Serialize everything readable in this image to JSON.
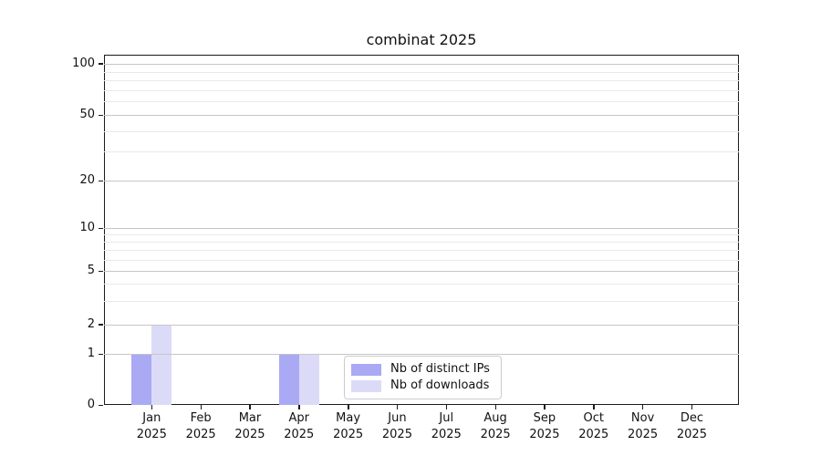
{
  "chart_data": {
    "type": "bar",
    "title": "combinat 2025",
    "categories": [
      {
        "month": "Jan",
        "year": "2025"
      },
      {
        "month": "Feb",
        "year": "2025"
      },
      {
        "month": "Mar",
        "year": "2025"
      },
      {
        "month": "Apr",
        "year": "2025"
      },
      {
        "month": "May",
        "year": "2025"
      },
      {
        "month": "Jun",
        "year": "2025"
      },
      {
        "month": "Jul",
        "year": "2025"
      },
      {
        "month": "Aug",
        "year": "2025"
      },
      {
        "month": "Sep",
        "year": "2025"
      },
      {
        "month": "Oct",
        "year": "2025"
      },
      {
        "month": "Nov",
        "year": "2025"
      },
      {
        "month": "Dec",
        "year": "2025"
      }
    ],
    "series": [
      {
        "name": "Nb of distinct IPs",
        "color": "#a9a9f4",
        "values": [
          1,
          0,
          0,
          1,
          0,
          0,
          0,
          0,
          0,
          0,
          0,
          0
        ]
      },
      {
        "name": "Nb of downloads",
        "color": "#dbdbf8",
        "values": [
          2,
          0,
          0,
          1,
          0,
          0,
          0,
          0,
          0,
          0,
          0,
          0
        ]
      }
    ],
    "y_axis": {
      "scale": "symlog",
      "major_ticks": [
        0,
        1,
        2,
        5,
        10,
        20,
        50,
        100
      ],
      "minor_ticks": [
        3,
        4,
        6,
        7,
        8,
        9,
        30,
        40,
        60,
        70,
        80,
        90
      ],
      "range": [
        0,
        110
      ]
    },
    "legend_position": "lower center",
    "grid": true
  },
  "colors": {
    "grid_major": "#c6c6c6",
    "grid_minor": "#e9e9e9",
    "spine": "#1a1a1a",
    "text": "#111111",
    "legend_border": "#cccccc"
  }
}
